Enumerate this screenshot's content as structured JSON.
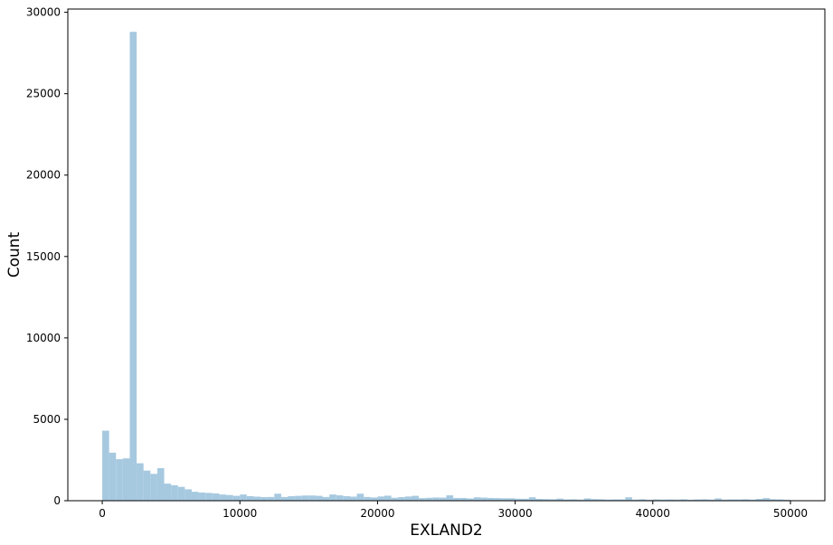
{
  "chart_data": {
    "type": "bar",
    "subtype": "histogram",
    "title": "",
    "xlabel": "EXLAND2",
    "ylabel": "Count",
    "xlim": [
      -2500,
      52500
    ],
    "ylim": [
      0,
      30200
    ],
    "bin_width": 500,
    "xticks": [
      0,
      10000,
      20000,
      30000,
      40000,
      50000
    ],
    "yticks": [
      0,
      5000,
      10000,
      15000,
      20000,
      25000,
      30000
    ],
    "xtick_labels": [
      "0",
      "10000",
      "20000",
      "30000",
      "40000",
      "50000"
    ],
    "ytick_labels": [
      "0",
      "5000",
      "10000",
      "15000",
      "20000",
      "25000",
      "30000"
    ],
    "grid": false,
    "legend": "none",
    "bar_color": "#a6c9e0",
    "bins_start": [
      0,
      500,
      1000,
      1500,
      2000,
      2500,
      3000,
      3500,
      4000,
      4500,
      5000,
      5500,
      6000,
      6500,
      7000,
      7500,
      8000,
      8500,
      9000,
      9500,
      10000,
      10500,
      11000,
      11500,
      12000,
      12500,
      13000,
      13500,
      14000,
      14500,
      15000,
      15500,
      16000,
      16500,
      17000,
      17500,
      18000,
      18500,
      19000,
      19500,
      20000,
      20500,
      21000,
      21500,
      22000,
      22500,
      23000,
      23500,
      24000,
      24500,
      25000,
      25500,
      26000,
      26500,
      27000,
      27500,
      28000,
      28500,
      29000,
      29500,
      30000,
      30500,
      31000,
      31500,
      32000,
      32500,
      33000,
      33500,
      34000,
      34500,
      35000,
      35500,
      36000,
      36500,
      37000,
      37500,
      38000,
      38500,
      39000,
      39500,
      40000,
      40500,
      41000,
      41500,
      42000,
      42500,
      43000,
      43500,
      44000,
      44500,
      45000,
      45500,
      46000,
      46500,
      47000,
      47500,
      48000,
      48500,
      49000,
      49500
    ],
    "values": [
      4300,
      2950,
      2550,
      2600,
      28800,
      2300,
      1850,
      1650,
      2000,
      1050,
      950,
      850,
      700,
      550,
      500,
      480,
      450,
      380,
      350,
      300,
      380,
      280,
      250,
      220,
      230,
      430,
      230,
      280,
      300,
      320,
      320,
      300,
      230,
      380,
      330,
      280,
      250,
      430,
      230,
      200,
      260,
      310,
      180,
      220,
      260,
      300,
      160,
      180,
      200,
      190,
      330,
      170,
      170,
      140,
      210,
      190,
      170,
      160,
      150,
      150,
      120,
      120,
      210,
      110,
      100,
      90,
      130,
      80,
      90,
      70,
      140,
      100,
      90,
      70,
      80,
      80,
      210,
      70,
      90,
      60,
      80,
      70,
      80,
      70,
      90,
      60,
      80,
      90,
      70,
      140,
      70,
      80,
      80,
      90,
      70,
      110,
      160,
      90,
      80,
      60
    ]
  }
}
